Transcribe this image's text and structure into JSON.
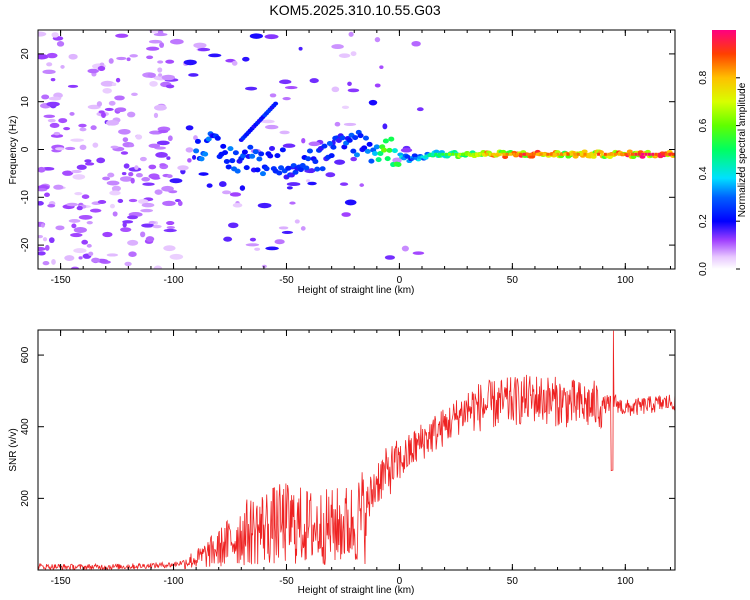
{
  "title": "KOM5.2025.310.10.55.G03",
  "colorbar": {
    "label": "Normalized spectral amplitude",
    "ticks": [
      "0.0",
      "0.2",
      "0.4",
      "0.6",
      "0.8"
    ],
    "range": [
      0,
      1
    ]
  },
  "chart_data": [
    {
      "type": "heatmap",
      "xlabel": "Height of straight line (km)",
      "ylabel": "Frequency (Hz)",
      "xlim": [
        -160,
        122
      ],
      "ylim": [
        -25,
        25
      ],
      "xticks": [
        "-150",
        "-100",
        "-50",
        "0",
        "50",
        "100"
      ],
      "yticks": [
        "20",
        "10",
        "0",
        "-10",
        "-20"
      ],
      "ridge": [
        {
          "x": -85,
          "y": 1,
          "v": 0.3
        },
        {
          "x": -75,
          "y": -2,
          "v": 0.3
        },
        {
          "x": -62,
          "y": -2,
          "v": 0.3
        },
        {
          "x": -48,
          "y": -3,
          "v": 0.25
        },
        {
          "x": -35,
          "y": -2,
          "v": 0.25
        },
        {
          "x": -20,
          "y": 2,
          "v": 0.3
        },
        {
          "x": -12,
          "y": 0,
          "v": 0.3
        },
        {
          "x": -5,
          "y": 0,
          "v": 0.65
        },
        {
          "x": 5,
          "y": -2,
          "v": 0.3
        },
        {
          "x": 15,
          "y": -1,
          "v": 0.5
        },
        {
          "x": 30,
          "y": -1,
          "v": 0.7
        },
        {
          "x": 50,
          "y": -1,
          "v": 0.9
        },
        {
          "x": 80,
          "y": -1,
          "v": 0.8
        },
        {
          "x": 100,
          "y": -1,
          "v": 0.9
        },
        {
          "x": 120,
          "y": -1,
          "v": 0.95
        }
      ]
    },
    {
      "type": "line",
      "xlabel": "Height of straight line (km)",
      "ylabel": "SNR (v/v)",
      "xlim": [
        -160,
        122
      ],
      "ylim": [
        0,
        670
      ],
      "xticks": [
        "-150",
        "-100",
        "-50",
        "0",
        "50",
        "100"
      ],
      "yticks": [
        "600",
        "400",
        "200"
      ],
      "color": "#ee2222",
      "series": [
        {
          "x": [
            -160,
            -140,
            -120,
            -100,
            -90,
            -80,
            -70,
            -60,
            -50,
            -40,
            -30,
            -20,
            -15,
            -10,
            0,
            5,
            10,
            20,
            30,
            40,
            50,
            60,
            70,
            80,
            90,
            95,
            100,
            110,
            122
          ],
          "y": [
            10,
            8,
            10,
            15,
            30,
            60,
            100,
            120,
            130,
            120,
            120,
            130,
            160,
            250,
            300,
            330,
            360,
            400,
            450,
            460,
            470,
            480,
            470,
            460,
            460,
            470,
            450,
            460,
            470
          ]
        }
      ]
    }
  ]
}
